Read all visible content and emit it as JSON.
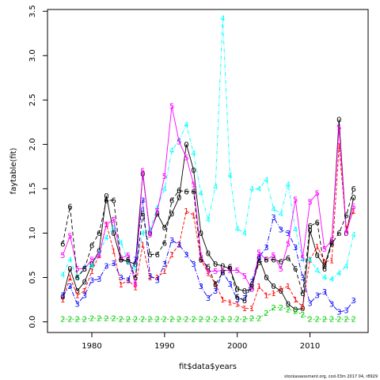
{
  "chart_data": {
    "type": "line",
    "xlabel": "fit$data$years",
    "ylabel": "faytable(fit)",
    "xlim": [
      1973.9,
      2018.0
    ],
    "ylim": [
      -0.12,
      3.52
    ],
    "x_ticks": [
      1980,
      1990,
      2000,
      2010
    ],
    "y_ticks": [
      0.0,
      0.5,
      1.0,
      1.5,
      2.0,
      2.5,
      3.0,
      3.5
    ],
    "y_tick_labels": [
      "0.0",
      "0.5",
      "1.0",
      "1.5",
      "2.0",
      "2.5",
      "3.0",
      "3.5"
    ],
    "x": [
      1976,
      1977,
      1978,
      1979,
      1980,
      1981,
      1982,
      1983,
      1984,
      1985,
      1986,
      1987,
      1988,
      1989,
      1990,
      1991,
      1992,
      1993,
      1994,
      1995,
      1996,
      1997,
      1998,
      1999,
      2000,
      2001,
      2002,
      2003,
      2004,
      2005,
      2006,
      2007,
      2008,
      2009,
      2010,
      2011,
      2012,
      2013,
      2014,
      2015,
      2016
    ],
    "series": [
      {
        "name": "0",
        "color": "#000000",
        "dash": "",
        "values": [
          0.28,
          0.6,
          0.35,
          0.45,
          0.65,
          0.8,
          1.42,
          1.0,
          0.7,
          0.68,
          0.65,
          1.67,
          1.0,
          1.22,
          1.06,
          1.22,
          1.4,
          2.0,
          1.71,
          1.0,
          0.77,
          0.65,
          0.63,
          0.6,
          0.37,
          0.35,
          0.37,
          0.72,
          0.5,
          0.4,
          0.35,
          0.2,
          0.14,
          0.15,
          1.03,
          0.75,
          0.63,
          0.9,
          2.28,
          1.0,
          1.4
        ]
      },
      {
        "name": "1",
        "color": "#ff0000",
        "dash": "4,2",
        "values": [
          0.25,
          0.5,
          0.3,
          0.35,
          0.57,
          0.75,
          1.1,
          0.8,
          0.42,
          0.47,
          0.39,
          0.87,
          0.5,
          0.5,
          0.57,
          0.76,
          0.87,
          1.25,
          1.2,
          0.7,
          0.55,
          0.43,
          0.25,
          0.22,
          0.2,
          0.15,
          0.15,
          0.4,
          0.3,
          0.32,
          0.37,
          0.4,
          0.25,
          0.17,
          0.7,
          0.85,
          0.68,
          0.69,
          1.98,
          1.05,
          1.25
        ]
      },
      {
        "name": "2",
        "color": "#00cc00",
        "dash": "2,2",
        "values": [
          0.03,
          0.03,
          0.03,
          0.03,
          0.04,
          0.04,
          0.04,
          0.04,
          0.03,
          0.03,
          0.03,
          0.03,
          0.03,
          0.03,
          0.03,
          0.03,
          0.03,
          0.03,
          0.03,
          0.03,
          0.03,
          0.03,
          0.03,
          0.03,
          0.03,
          0.03,
          0.04,
          0.04,
          0.1,
          0.16,
          0.16,
          0.14,
          0.12,
          0.08,
          0.03,
          0.03,
          0.03,
          0.03,
          0.03,
          0.03,
          0.03
        ]
      },
      {
        "name": "3",
        "color": "#0000ff",
        "dash": "6,2,1,2",
        "values": [
          0.3,
          0.4,
          0.2,
          0.3,
          0.47,
          0.48,
          0.63,
          0.66,
          0.5,
          0.47,
          0.7,
          1.37,
          0.52,
          0.47,
          0.65,
          0.92,
          0.87,
          0.76,
          0.65,
          0.4,
          0.27,
          0.35,
          0.56,
          0.43,
          0.25,
          0.27,
          0.45,
          0.73,
          0.84,
          1.18,
          1.04,
          1.0,
          0.84,
          0.5,
          0.21,
          0.3,
          0.34,
          0.2,
          0.11,
          0.13,
          0.24
        ]
      },
      {
        "name": "4",
        "color": "#00ffff",
        "dash": "5,2,1,2",
        "values": [
          0.53,
          0.7,
          0.5,
          0.62,
          0.63,
          0.78,
          0.95,
          1.06,
          0.89,
          0.68,
          0.6,
          1.0,
          1.04,
          1.29,
          1.5,
          1.93,
          2.05,
          2.22,
          1.9,
          1.45,
          1.15,
          1.52,
          3.42,
          1.65,
          1.05,
          1.0,
          1.5,
          1.5,
          1.6,
          1.27,
          1.22,
          1.55,
          1.04,
          0.7,
          0.7,
          0.58,
          0.5,
          0.48,
          0.55,
          0.63,
          0.98
        ]
      },
      {
        "name": "5",
        "color": "#ff00ff",
        "dash": "",
        "values": [
          0.75,
          0.97,
          0.6,
          0.6,
          0.7,
          0.75,
          1.1,
          1.15,
          0.72,
          0.75,
          0.42,
          1.7,
          0.98,
          1.25,
          1.64,
          2.43,
          2.03,
          1.85,
          1.55,
          0.75,
          0.57,
          0.57,
          0.58,
          0.58,
          0.58,
          0.52,
          0.37,
          0.78,
          0.7,
          0.75,
          0.6,
          0.88,
          1.38,
          0.72,
          1.35,
          1.45,
          0.82,
          0.92,
          2.19,
          1.0,
          1.3
        ]
      },
      {
        "name": "6",
        "color": "#000000",
        "dash": "5,3",
        "values": [
          0.88,
          1.3,
          0.5,
          0.6,
          0.86,
          1.0,
          1.37,
          1.37,
          0.7,
          0.7,
          0.5,
          1.22,
          0.76,
          0.76,
          0.89,
          1.37,
          1.48,
          1.47,
          1.47,
          0.7,
          0.62,
          0.42,
          0.56,
          0.62,
          0.28,
          0.24,
          0.42,
          0.67,
          0.7,
          0.7,
          0.68,
          0.72,
          0.6,
          0.32,
          1.08,
          1.12,
          0.6,
          0.88,
          1.0,
          1.2,
          1.5
        ]
      }
    ]
  },
  "footer": {
    "text": "stockassessment.org, cod-33m  2017 04, r8929"
  }
}
